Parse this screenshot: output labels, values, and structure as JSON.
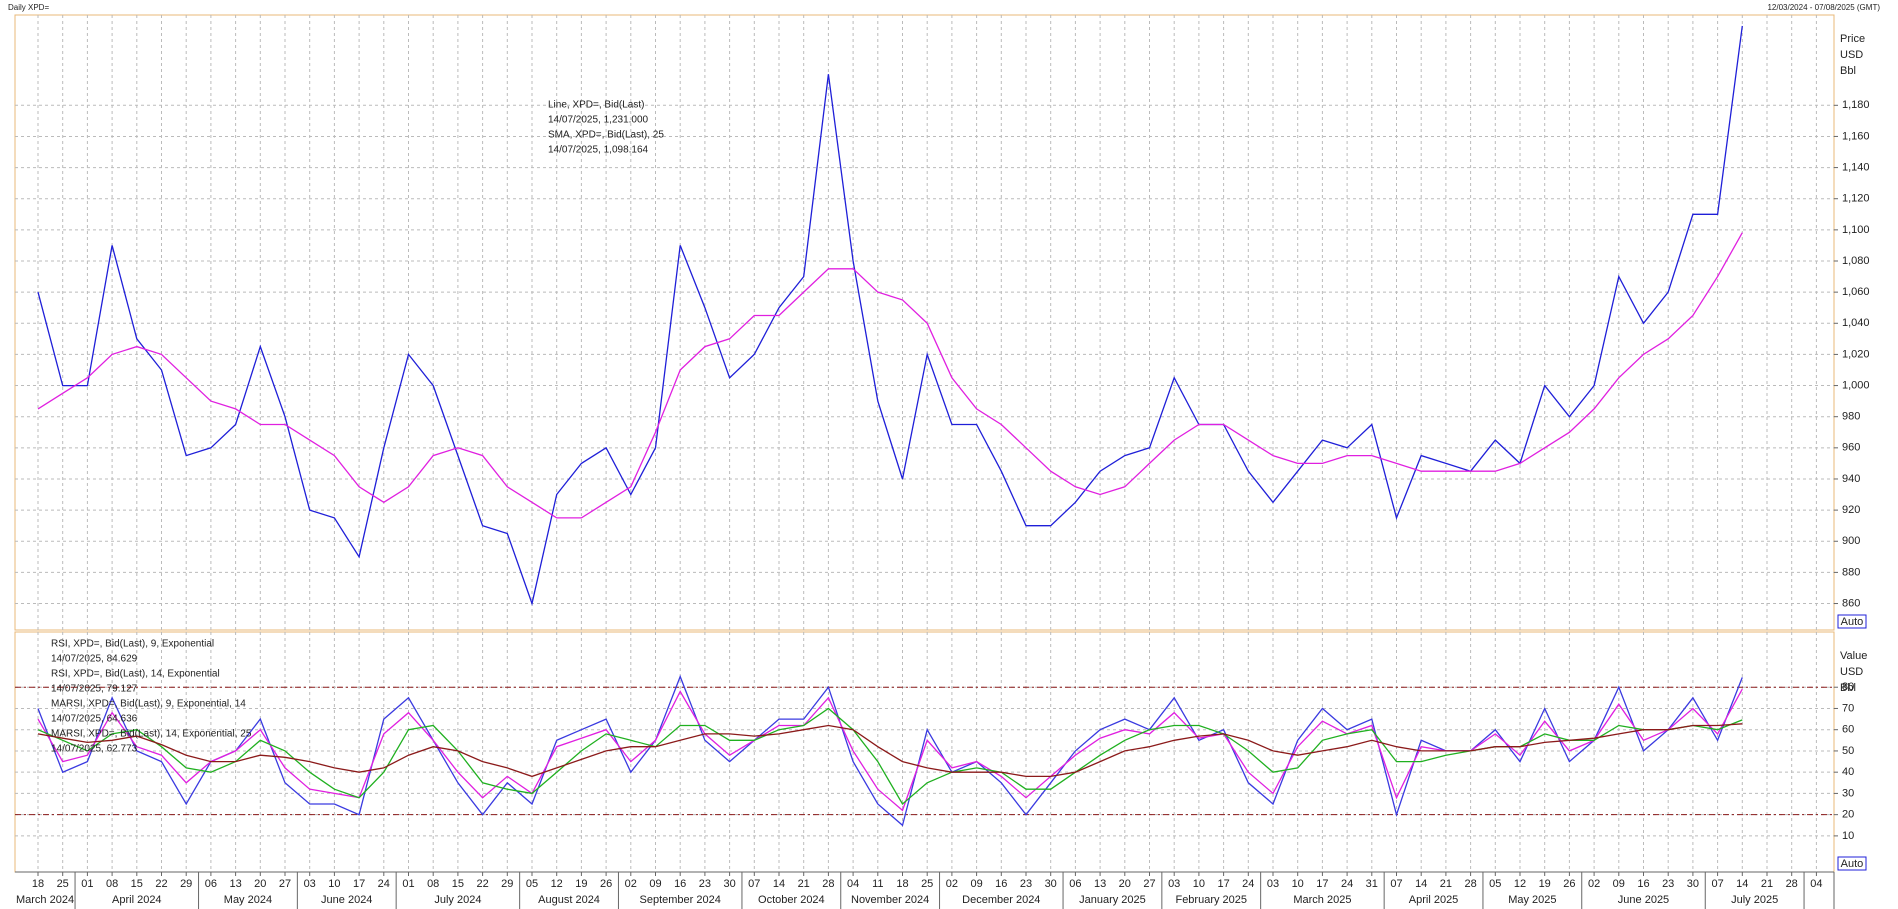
{
  "chart_data": [
    {
      "type": "line",
      "title": "Daily XPD=",
      "subtitle": "12/03/2024 - 07/08/2025 (GMT)",
      "categories": [
        "18",
        "25",
        "01",
        "08",
        "15",
        "22",
        "29",
        "06",
        "13",
        "20",
        "27",
        "03",
        "10",
        "17",
        "24",
        "01",
        "08",
        "15",
        "22",
        "29",
        "05",
        "12",
        "19",
        "26",
        "02",
        "09",
        "16",
        "23",
        "30",
        "07",
        "14",
        "21",
        "28",
        "04",
        "11",
        "18",
        "25",
        "02",
        "09",
        "16",
        "23",
        "30",
        "06",
        "13",
        "20",
        "27",
        "03",
        "10",
        "17",
        "24",
        "03",
        "10",
        "17",
        "24",
        "31",
        "07",
        "14",
        "21",
        "28",
        "05",
        "12",
        "19",
        "26",
        "02",
        "09",
        "16",
        "23",
        "30",
        "07",
        "14",
        "21",
        "28",
        "04"
      ],
      "months": [
        "March 2024",
        "April 2024",
        "May 2024",
        "June 2024",
        "July 2024",
        "August 2024",
        "September 2024",
        "October 2024",
        "November 2024",
        "December 2024",
        "January 2025",
        "February 2025",
        "March 2025",
        "April 2025",
        "May 2025",
        "June 2025",
        "July 2025"
      ],
      "units": [
        "Price",
        "USD",
        "Bbl"
      ],
      "button": "Auto",
      "ylim": [
        843,
        1238
      ],
      "yticks": [
        860,
        880,
        900,
        920,
        940,
        960,
        980,
        {
          "value": 1000,
          "label": "1,000"
        },
        {
          "value": 1020,
          "label": "1,020"
        },
        {
          "value": 1040,
          "label": "1,040"
        },
        {
          "value": 1060,
          "label": "1,060"
        },
        {
          "value": 1080,
          "label": "1,080"
        },
        {
          "value": 1100,
          "label": "1,100"
        },
        {
          "value": 1120,
          "label": "1,120"
        },
        {
          "value": 1140,
          "label": "1,140"
        },
        {
          "value": 1160,
          "label": "1,160"
        },
        {
          "value": 1180,
          "label": "1,180"
        }
      ],
      "grid": true,
      "series": [
        {
          "name": "Line, XPD=, Bid(Last)",
          "label": "14/07/2025, 1,231.000",
          "color": "#1f1fd8",
          "values": [
            1060,
            1000,
            1000,
            1090,
            1030,
            1010,
            955,
            960,
            975,
            1025,
            980,
            920,
            915,
            890,
            960,
            1020,
            1000,
            955,
            910,
            905,
            860,
            930,
            950,
            960,
            930,
            960,
            1090,
            1050,
            1005,
            1020,
            1050,
            1070,
            1200,
            1080,
            990,
            940,
            1020,
            975,
            975,
            945,
            910,
            910,
            925,
            945,
            955,
            960,
            1005,
            975,
            975,
            945,
            925,
            945,
            965,
            960,
            975,
            915,
            955,
            950,
            945,
            965,
            950,
            1000,
            980,
            1000,
            1070,
            1040,
            1060,
            1110,
            1110,
            1231,
            null,
            null,
            null
          ]
        },
        {
          "name": "SMA, XPD=, Bid(Last),  25",
          "label": "14/07/2025, 1,098.164",
          "color": "#e020e0",
          "values": [
            985,
            995,
            1005,
            1020,
            1025,
            1020,
            1005,
            990,
            985,
            975,
            975,
            965,
            955,
            935,
            925,
            935,
            955,
            960,
            955,
            935,
            925,
            915,
            915,
            925,
            935,
            970,
            1010,
            1025,
            1030,
            1045,
            1045,
            1060,
            1075,
            1075,
            1060,
            1055,
            1040,
            1005,
            985,
            975,
            960,
            945,
            935,
            930,
            935,
            950,
            965,
            975,
            975,
            965,
            955,
            950,
            950,
            955,
            955,
            950,
            945,
            945,
            945,
            945,
            950,
            960,
            970,
            985,
            1005,
            1020,
            1030,
            1045,
            1070,
            1098.164,
            null,
            null,
            null
          ]
        }
      ]
    },
    {
      "type": "line",
      "units": [
        "Value",
        "USD",
        "Bbl"
      ],
      "button": "Auto",
      "ylim": [
        -7,
        106
      ],
      "yticks": [
        10,
        20,
        30,
        40,
        50,
        60,
        70,
        80
      ],
      "grid": true,
      "ref_lines": [
        80,
        20
      ],
      "series": [
        {
          "name": "RSI, XPD=, Bid(Last),  9, Exponential",
          "label": "14/07/2025, 84.629",
          "color": "#3a3ae0",
          "values": [
            70,
            40,
            45,
            75,
            50,
            45,
            25,
            45,
            50,
            65,
            35,
            25,
            25,
            20,
            65,
            75,
            55,
            35,
            20,
            35,
            25,
            55,
            60,
            65,
            40,
            55,
            85,
            55,
            45,
            55,
            65,
            65,
            80,
            45,
            25,
            15,
            60,
            40,
            45,
            35,
            20,
            35,
            50,
            60,
            65,
            60,
            75,
            55,
            60,
            35,
            25,
            55,
            70,
            60,
            65,
            20,
            55,
            50,
            50,
            60,
            45,
            70,
            45,
            55,
            80,
            50,
            60,
            75,
            55,
            84.629,
            null,
            null,
            null
          ]
        },
        {
          "name": "RSI, XPD=, Bid(Last),  14, Exponential",
          "label": "14/07/2025, 79.127",
          "color": "#e020e0",
          "values": [
            65,
            45,
            48,
            68,
            52,
            48,
            35,
            45,
            50,
            60,
            42,
            32,
            30,
            28,
            58,
            68,
            55,
            40,
            28,
            38,
            30,
            52,
            56,
            60,
            45,
            55,
            78,
            58,
            48,
            55,
            62,
            62,
            75,
            50,
            32,
            22,
            55,
            42,
            45,
            38,
            28,
            38,
            48,
            56,
            60,
            58,
            68,
            56,
            58,
            40,
            30,
            52,
            64,
            58,
            62,
            28,
            52,
            50,
            50,
            58,
            48,
            64,
            50,
            55,
            72,
            55,
            60,
            70,
            58,
            79.127,
            null,
            null,
            null
          ]
        },
        {
          "name": "MARSI, XPD=, Bid(Last),  9, Exponential, 14",
          "label": "14/07/2025, 64.636",
          "color": "#20b020",
          "values": [
            60,
            55,
            50,
            58,
            60,
            52,
            42,
            40,
            45,
            55,
            50,
            40,
            32,
            28,
            40,
            60,
            62,
            50,
            35,
            32,
            30,
            40,
            50,
            58,
            55,
            52,
            62,
            62,
            55,
            55,
            60,
            62,
            70,
            60,
            45,
            25,
            35,
            40,
            42,
            40,
            32,
            32,
            40,
            48,
            55,
            60,
            62,
            62,
            58,
            50,
            40,
            42,
            55,
            58,
            60,
            45,
            45,
            48,
            50,
            52,
            52,
            58,
            55,
            55,
            62,
            60,
            60,
            62,
            60,
            64.636,
            null,
            null,
            null
          ]
        },
        {
          "name": "MARSI, XPD=, Bid(Last),  14, Exponential, 25",
          "label": "14/07/2025, 62.773",
          "color": "#8b1a1a",
          "values": [
            58,
            56,
            54,
            55,
            57,
            53,
            48,
            45,
            45,
            48,
            47,
            45,
            42,
            40,
            42,
            48,
            52,
            50,
            45,
            42,
            38,
            42,
            46,
            50,
            52,
            52,
            55,
            58,
            58,
            57,
            58,
            60,
            62,
            60,
            52,
            45,
            42,
            40,
            40,
            40,
            38,
            38,
            40,
            45,
            50,
            52,
            55,
            57,
            58,
            55,
            50,
            48,
            50,
            52,
            55,
            52,
            50,
            50,
            50,
            52,
            52,
            54,
            55,
            56,
            58,
            60,
            60,
            62,
            62,
            62.773,
            null,
            null,
            null
          ]
        }
      ]
    }
  ]
}
